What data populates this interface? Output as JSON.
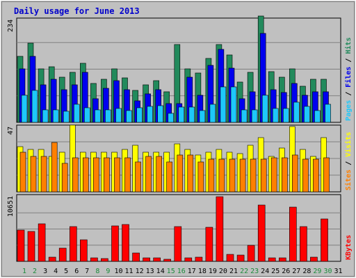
{
  "chart_data": {
    "type": "bar",
    "title": "Daily usage for June 2013",
    "categories": [
      "1",
      "2",
      "3",
      "4",
      "5",
      "6",
      "7",
      "8",
      "9",
      "10",
      "11",
      "12",
      "13",
      "14",
      "15",
      "16",
      "17",
      "18",
      "19",
      "20",
      "21",
      "22",
      "23",
      "24",
      "25",
      "26",
      "27",
      "28",
      "29",
      "30",
      "31"
    ],
    "weekend_days": [
      "1",
      "2",
      "8",
      "9",
      "15",
      "16",
      "22",
      "23",
      "29",
      "30"
    ],
    "panels": [
      {
        "id": "pages-files-hits",
        "ymax_label": "234",
        "ymax": 234,
        "right_labels": [
          "Pages",
          "Files",
          "Hits"
        ],
        "series": [
          {
            "name": "Hits",
            "color": "#228a5c",
            "values": [
              145,
              175,
              118,
              122,
              100,
              110,
              130,
              85,
              95,
              118,
              98,
              70,
              82,
              92,
              68,
              172,
              118,
              108,
              140,
              172,
              148,
              88,
              110,
              234,
              112,
              100,
              118,
              80,
              95,
              95,
              0
            ]
          },
          {
            "name": "Files",
            "color": "#0000ee",
            "values": [
              118,
              145,
              82,
              95,
              72,
              82,
              110,
              52,
              75,
              92,
              72,
              48,
              62,
              72,
              42,
              42,
              100,
              60,
              125,
              160,
              120,
              52,
              68,
              195,
              72,
              65,
              85,
              60,
              68,
              68,
              0
            ]
          },
          {
            "name": "Pages",
            "color": "#1ec8fa",
            "values": [
              60,
              70,
              28,
              28,
              24,
              40,
              32,
              28,
              28,
              30,
              26,
              32,
              35,
              36,
              20,
              33,
              33,
              26,
              40,
              78,
              78,
              28,
              28,
              60,
              30,
              30,
              45,
              35,
              26,
              40,
              0
            ]
          }
        ]
      },
      {
        "id": "sites-visits",
        "ymax_label": "47",
        "ymax": 47,
        "right_labels": [
          "Sites",
          "Visits"
        ],
        "series": [
          {
            "name": "Visits",
            "color": "#ffff00",
            "values": [
              32,
              30,
              30,
              25,
              28,
              47,
              28,
              28,
              28,
              28,
              30,
              33,
              28,
              28,
              28,
              34,
              30,
              26,
              28,
              30,
              28,
              27,
              33,
              38,
              25,
              31,
              46,
              30,
              25,
              38,
              0
            ]
          },
          {
            "name": "Sites",
            "color": "#ff8000",
            "values": [
              28,
              25,
              25,
              35,
              20,
              24,
              24,
              24,
              24,
              24,
              24,
              21,
              25,
              25,
              21,
              26,
              26,
              21,
              23,
              23,
              23,
              23,
              23,
              23,
              24,
              24,
              26,
              23,
              23,
              24,
              0
            ]
          }
        ]
      },
      {
        "id": "kbytes",
        "ymax_label": "10651",
        "ymax": 10651,
        "right_labels": [
          "KBytes"
        ],
        "series": [
          {
            "name": "KBytes",
            "color": "#ff0000",
            "values": [
              5100,
              4900,
              6200,
              700,
              2200,
              5700,
              3600,
              550,
              500,
              5800,
              6100,
              1400,
              600,
              600,
              350,
              5700,
              600,
              650,
              5600,
              10651,
              1100,
              1000,
              2600,
              9300,
              550,
              550,
              8900,
              5700,
              650,
              7000,
              0
            ]
          }
        ]
      }
    ]
  }
}
